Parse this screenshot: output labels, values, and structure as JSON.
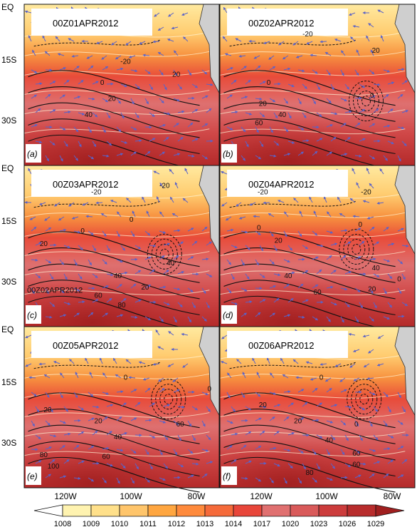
{
  "panels": [
    {
      "id": "a",
      "tag": "(a)",
      "date": "00Z01APR2012"
    },
    {
      "id": "b",
      "tag": "(b)",
      "date": "00Z02APR2012"
    },
    {
      "id": "c",
      "tag": "(c)",
      "date": "00Z03APR2012"
    },
    {
      "id": "d",
      "tag": "(d)",
      "date": "00Z04APR2012"
    },
    {
      "id": "e",
      "tag": "(e)",
      "date": "00Z05APR2012"
    },
    {
      "id": "f",
      "tag": "(f)",
      "date": "00Z06APR2012"
    }
  ],
  "lat_labels": [
    "EQ",
    "15S",
    "30S"
  ],
  "lon_labels": [
    "120W",
    "100W",
    "80W"
  ],
  "colorbar": {
    "levels": [
      "1008",
      "1009",
      "1010",
      "1011",
      "1012",
      "1013",
      "1014",
      "1017",
      "1020",
      "1023",
      "1026",
      "1029"
    ],
    "colors": [
      "#ffffff",
      "#fff3b0",
      "#ffe08a",
      "#ffc56b",
      "#ffa640",
      "#ff8a3c",
      "#f56a3a",
      "#e8463a",
      "#e07070",
      "#d95a5a",
      "#cc3c3c",
      "#b82c2c",
      "#a01f1f"
    ]
  },
  "contour_labels": {
    "a": [
      "-20",
      "0",
      "20",
      "40",
      "20"
    ],
    "b": [
      "-20",
      "20",
      "0",
      "20",
      "40",
      "60",
      "0"
    ],
    "c": [
      "-20",
      "0",
      "20",
      "0",
      "40",
      "20",
      "40",
      "60",
      "80",
      "-20"
    ],
    "d": [
      "-20",
      "0",
      "20",
      "0",
      "40",
      "20",
      "60",
      "40",
      "0",
      "-20"
    ],
    "e": [
      "0",
      "20",
      "20",
      "40",
      "60",
      "80",
      "60",
      "100",
      "0"
    ],
    "f": [
      "0",
      "20",
      "0",
      "20",
      "40",
      "60",
      "80",
      "60"
    ]
  },
  "overlay_text": {
    "c": "00Z02APR2012"
  }
}
